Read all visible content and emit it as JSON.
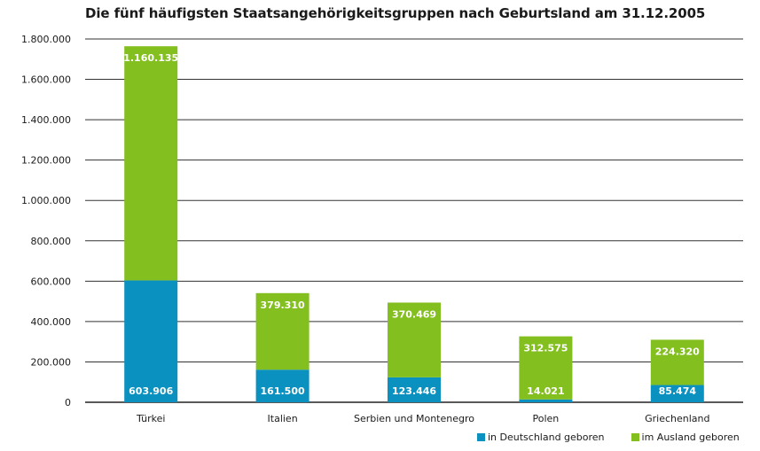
{
  "chart_data": {
    "type": "bar",
    "stacked": true,
    "title": "Die fünf häufigsten Staatsangehörigkeitsgruppen nach Geburtsland am 31.12.2005",
    "categories": [
      "Türkei",
      "Italien",
      "Serbien und Montenegro",
      "Polen",
      "Griechenland"
    ],
    "series": [
      {
        "name": "in Deutschland geboren",
        "color": "#0b91c0",
        "values": [
          603906,
          161500,
          123446,
          14021,
          85474
        ],
        "labels": [
          "603.906",
          "161.500",
          "123.446",
          "14.021",
          "85.474"
        ]
      },
      {
        "name": "im Ausland geboren",
        "color": "#83bf1f",
        "values": [
          1160135,
          379310,
          370469,
          312575,
          224320
        ],
        "labels": [
          "1.160.135",
          "379.310",
          "370.469",
          "312.575",
          "224.320"
        ]
      }
    ],
    "ylim": [
      0,
      1800000
    ],
    "yticks": [
      0,
      200000,
      400000,
      600000,
      800000,
      1000000,
      1200000,
      1400000,
      1600000,
      1800000
    ],
    "ytick_labels": [
      "0",
      "200.000",
      "400.000",
      "600.000",
      "800.000",
      "1.000.000",
      "1.200.000",
      "1.400.000",
      "1.600.000",
      "1.800.000"
    ],
    "grid": true,
    "legend_position": "bottom-right"
  }
}
